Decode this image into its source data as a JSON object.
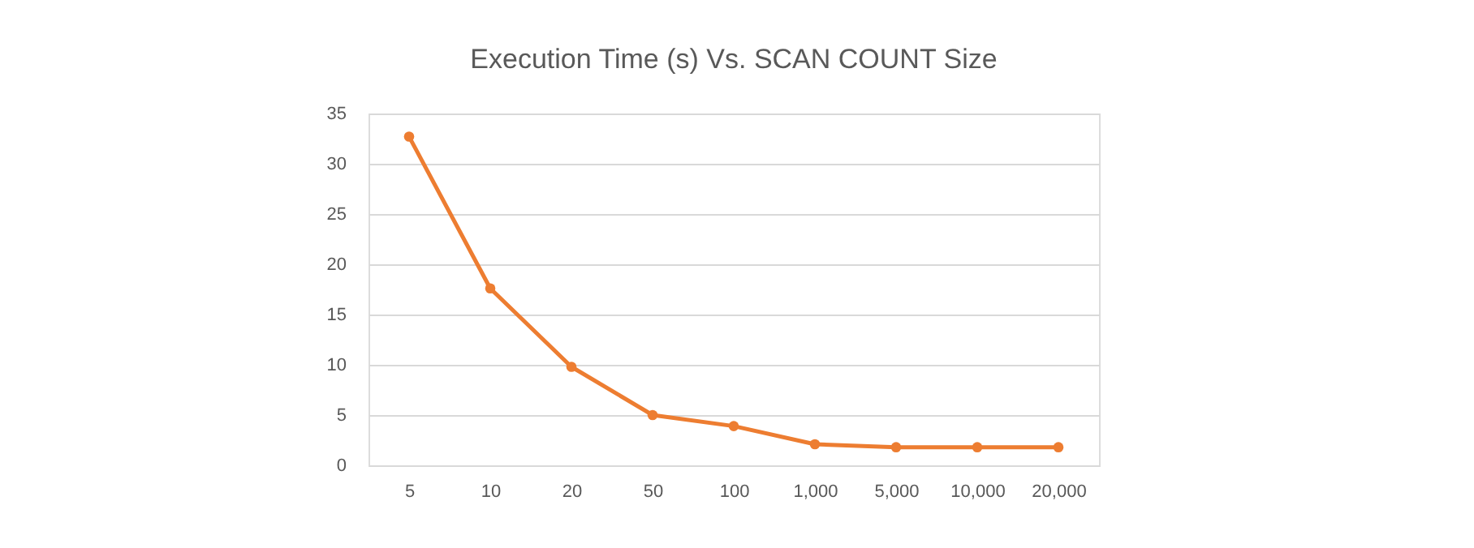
{
  "chart_data": {
    "type": "line",
    "title": "Execution Time (s) Vs. SCAN COUNT Size",
    "categories": [
      "5",
      "10",
      "20",
      "50",
      "100",
      "1,000",
      "5,000",
      "10,000",
      "20,000"
    ],
    "series": [
      {
        "color": "#ed7d31",
        "values": [
          32.7,
          17.6,
          9.8,
          5.0,
          3.9,
          2.1,
          1.8,
          1.8,
          1.8
        ]
      }
    ],
    "ylim": [
      0,
      35
    ],
    "yticks": [
      0,
      5,
      10,
      15,
      20,
      25,
      30,
      35
    ],
    "grid": "y",
    "marker": "circle",
    "line_style": "solid"
  }
}
